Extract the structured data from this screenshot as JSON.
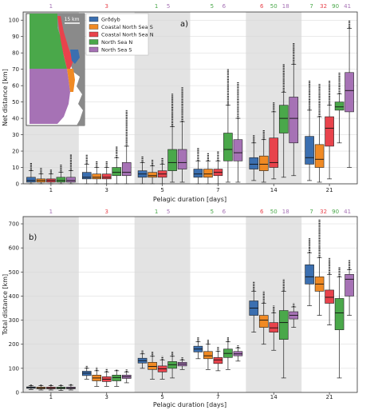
{
  "colors": {
    "Grðdyb": "#3b6fb0",
    "Coastal North Sea S": "#f08a24",
    "Coastal North Sea N": "#e8434c",
    "North Sea N": "#4aa84a",
    "North Sea S": "#a672b5",
    "shade": "#e3e3e3"
  },
  "chart_data": [
    {
      "type": "box",
      "panel_label": "a)",
      "title": "",
      "xlabel": "Pelagic duration [days]",
      "ylabel": "Net distance [km]",
      "ylim": [
        0,
        105
      ],
      "yticks": [
        0,
        10,
        20,
        30,
        40,
        50,
        60,
        70,
        80,
        90,
        100
      ],
      "categories": [
        "1",
        "3",
        "5",
        "7",
        "14",
        "21"
      ],
      "shaded_groups": [
        "1",
        "5",
        "14"
      ],
      "legend": {
        "placement": "top-left",
        "entries": [
          "Grðdyb",
          "Coastal North Sea S",
          "Coastal North Sea N",
          "North Sea N",
          "North Sea S"
        ]
      },
      "inset_map": {
        "scale_label": "15 km"
      },
      "top_counts": [
        {
          "category": "1",
          "values": [
            {
              "text": "1",
              "series": "North Sea S"
            }
          ]
        },
        {
          "category": "3",
          "values": [
            {
              "text": "3",
              "series": "Coastal North Sea N"
            }
          ]
        },
        {
          "category": "5",
          "values": [
            {
              "text": "1",
              "series": "North Sea N"
            },
            {
              "text": "5",
              "series": "North Sea S"
            }
          ]
        },
        {
          "category": "7",
          "values": [
            {
              "text": "5",
              "series": "North Sea N"
            },
            {
              "text": "6",
              "series": "North Sea S"
            }
          ]
        },
        {
          "category": "14",
          "values": [
            {
              "text": "6",
              "series": "Coastal North Sea N"
            },
            {
              "text": "50",
              "series": "North Sea N"
            },
            {
              "text": "18",
              "series": "North Sea S"
            }
          ]
        },
        {
          "category": "21",
          "values": [
            {
              "text": "7",
              "series": "North Sea N"
            },
            {
              "text": "32",
              "series": "Coastal North Sea N"
            },
            {
              "text": "90",
              "series": "North Sea N"
            },
            {
              "text": "41",
              "series": "North Sea S"
            }
          ]
        }
      ],
      "series": [
        {
          "name": "Grðdyb",
          "boxes": [
            {
              "wlo": 0,
              "q1": 1,
              "med": 2,
              "q3": 4,
              "whi": 8,
              "fout": 13
            },
            {
              "wlo": 0,
              "q1": 3,
              "med": 4,
              "q3": 7,
              "whi": 12,
              "fout": 18
            },
            {
              "wlo": 0,
              "q1": 4,
              "med": 6,
              "q3": 8,
              "whi": 13,
              "fout": 17
            },
            {
              "wlo": 0,
              "q1": 4,
              "med": 6,
              "q3": 9,
              "whi": 14,
              "fout": 22
            },
            {
              "wlo": 2,
              "q1": 9,
              "med": 12,
              "q3": 16,
              "whi": 25,
              "fout": 30
            },
            {
              "wlo": 2,
              "q1": 12,
              "med": 16,
              "q3": 29,
              "whi": 45,
              "fout": 63
            }
          ]
        },
        {
          "name": "Coastal North Sea S",
          "boxes": [
            {
              "wlo": 0,
              "q1": 1,
              "med": 2,
              "q3": 3,
              "whi": 6,
              "fout": 10
            },
            {
              "wlo": 0,
              "q1": 3,
              "med": 4,
              "q3": 6,
              "whi": 10,
              "fout": 14
            },
            {
              "wlo": 0,
              "q1": 4,
              "med": 5,
              "q3": 7,
              "whi": 11,
              "fout": 15
            },
            {
              "wlo": 0,
              "q1": 4,
              "med": 6,
              "q3": 9,
              "whi": 14,
              "fout": 19
            },
            {
              "wlo": 1,
              "q1": 8,
              "med": 12,
              "q3": 17,
              "whi": 27,
              "fout": 33
            },
            {
              "wlo": 1,
              "q1": 10,
              "med": 15,
              "q3": 24,
              "whi": 41,
              "fout": 61
            }
          ]
        },
        {
          "name": "Coastal North Sea N",
          "boxes": [
            {
              "wlo": 0,
              "q1": 1,
              "med": 2,
              "q3": 3,
              "whi": 6,
              "fout": 9
            },
            {
              "wlo": 0,
              "q1": 3,
              "med": 4,
              "q3": 6,
              "whi": 10,
              "fout": 14
            },
            {
              "wlo": 0,
              "q1": 4,
              "med": 6,
              "q3": 8,
              "whi": 12,
              "fout": 16
            },
            {
              "wlo": 0,
              "q1": 5,
              "med": 7,
              "q3": 9,
              "whi": 14,
              "fout": 20
            },
            {
              "wlo": 3,
              "q1": 10,
              "med": 13,
              "q3": 28,
              "whi": 44,
              "fout": 50
            },
            {
              "wlo": 3,
              "q1": 23,
              "med": 34,
              "q3": 41,
              "whi": 48,
              "fout": 63
            }
          ]
        },
        {
          "name": "North Sea N",
          "boxes": [
            {
              "wlo": 0,
              "q1": 1,
              "med": 2,
              "q3": 4,
              "whi": 7,
              "fout": 12
            },
            {
              "wlo": 0,
              "q1": 5,
              "med": 7,
              "q3": 10,
              "whi": 16,
              "fout": 23
            },
            {
              "wlo": 1,
              "q1": 8,
              "med": 13,
              "q3": 21,
              "whi": 35,
              "fout": 55
            },
            {
              "wlo": 1,
              "q1": 14,
              "med": 21,
              "q3": 31,
              "whi": 48,
              "fout": 70
            },
            {
              "wlo": 4,
              "q1": 31,
              "med": 40,
              "q3": 48,
              "whi": 56,
              "fout": 73
            },
            {
              "wlo": 25,
              "q1": 45,
              "med": 47,
              "q3": 50,
              "whi": 55,
              "fout": 68
            }
          ]
        },
        {
          "name": "North Sea S",
          "boxes": [
            {
              "wlo": 0,
              "q1": 1,
              "med": 2,
              "q3": 4,
              "whi": 8,
              "fout": 18
            },
            {
              "wlo": 0,
              "q1": 5,
              "med": 7,
              "q3": 13,
              "whi": 23,
              "fout": 45
            },
            {
              "wlo": 1,
              "q1": 9,
              "med": 13,
              "q3": 21,
              "whi": 38,
              "fout": 59
            },
            {
              "wlo": 1,
              "q1": 14,
              "med": 19,
              "q3": 27,
              "whi": 40,
              "fout": 62
            },
            {
              "wlo": 5,
              "q1": 25,
              "med": 40,
              "q3": 53,
              "whi": 73,
              "fout": 86
            },
            {
              "wlo": 10,
              "q1": 44,
              "med": 57,
              "q3": 68,
              "whi": 95,
              "fout": 100
            }
          ]
        }
      ]
    },
    {
      "type": "box",
      "panel_label": "b)",
      "title": "",
      "xlabel": "Pelagic duration [days]",
      "ylabel": "Total distance [km]",
      "ylim": [
        0,
        730
      ],
      "yticks": [
        0,
        100,
        200,
        300,
        400,
        500,
        600,
        700
      ],
      "categories": [
        "1",
        "3",
        "5",
        "7",
        "14",
        "21"
      ],
      "shaded_groups": [
        "1",
        "5",
        "14"
      ],
      "top_counts": [
        {
          "category": "1",
          "values": [
            {
              "text": "1",
              "series": "North Sea S"
            }
          ]
        },
        {
          "category": "3",
          "values": [
            {
              "text": "3",
              "series": "Coastal North Sea N"
            }
          ]
        },
        {
          "category": "5",
          "values": [
            {
              "text": "1",
              "series": "North Sea N"
            },
            {
              "text": "5",
              "series": "North Sea S"
            }
          ]
        },
        {
          "category": "7",
          "values": [
            {
              "text": "5",
              "series": "North Sea N"
            },
            {
              "text": "6",
              "series": "North Sea S"
            }
          ]
        },
        {
          "category": "14",
          "values": [
            {
              "text": "6",
              "series": "Coastal North Sea N"
            },
            {
              "text": "50",
              "series": "North Sea N"
            },
            {
              "text": "18",
              "series": "North Sea S"
            }
          ]
        },
        {
          "category": "21",
          "values": [
            {
              "text": "7",
              "series": "North Sea N"
            },
            {
              "text": "32",
              "series": "Coastal North Sea N"
            },
            {
              "text": "90",
              "series": "North Sea N"
            },
            {
              "text": "41",
              "series": "North Sea S"
            }
          ]
        }
      ],
      "series": [
        {
          "name": "Grðdyb",
          "boxes": [
            {
              "wlo": 12,
              "q1": 17,
              "med": 20,
              "q3": 23,
              "whi": 28,
              "fout": 35
            },
            {
              "wlo": 55,
              "q1": 70,
              "med": 80,
              "q3": 88,
              "whi": 100,
              "fout": 110
            },
            {
              "wlo": 100,
              "q1": 122,
              "med": 132,
              "q3": 142,
              "whi": 160,
              "fout": 175
            },
            {
              "wlo": 140,
              "q1": 168,
              "med": 180,
              "q3": 192,
              "whi": 210,
              "fout": 230
            },
            {
              "wlo": 250,
              "q1": 320,
              "med": 350,
              "q3": 380,
              "whi": 420,
              "fout": 460
            },
            {
              "wlo": 360,
              "q1": 450,
              "med": 480,
              "q3": 530,
              "whi": 580,
              "fout": 640
            }
          ]
        },
        {
          "name": "Coastal North Sea S",
          "boxes": [
            {
              "wlo": 10,
              "q1": 15,
              "med": 18,
              "q3": 22,
              "whi": 28,
              "fout": 35
            },
            {
              "wlo": 25,
              "q1": 48,
              "med": 60,
              "q3": 72,
              "whi": 90,
              "fout": 105
            },
            {
              "wlo": 55,
              "q1": 95,
              "med": 108,
              "q3": 125,
              "whi": 150,
              "fout": 170
            },
            {
              "wlo": 95,
              "q1": 140,
              "med": 152,
              "q3": 170,
              "whi": 200,
              "fout": 220
            },
            {
              "wlo": 200,
              "q1": 270,
              "med": 300,
              "q3": 320,
              "whi": 370,
              "fout": 420
            },
            {
              "wlo": 320,
              "q1": 420,
              "med": 450,
              "q3": 480,
              "whi": 560,
              "fout": 720
            }
          ]
        },
        {
          "name": "Coastal North Sea N",
          "boxes": [
            {
              "wlo": 10,
              "q1": 15,
              "med": 18,
              "q3": 22,
              "whi": 28,
              "fout": 33
            },
            {
              "wlo": 25,
              "q1": 45,
              "med": 55,
              "q3": 65,
              "whi": 85,
              "fout": 100
            },
            {
              "wlo": 55,
              "q1": 85,
              "med": 98,
              "q3": 110,
              "whi": 135,
              "fout": 150
            },
            {
              "wlo": 90,
              "q1": 120,
              "med": 135,
              "q3": 145,
              "whi": 170,
              "fout": 190
            },
            {
              "wlo": 175,
              "q1": 250,
              "med": 268,
              "q3": 290,
              "whi": 330,
              "fout": 360
            },
            {
              "wlo": 280,
              "q1": 370,
              "med": 395,
              "q3": 425,
              "whi": 490,
              "fout": 560
            }
          ]
        },
        {
          "name": "North Sea N",
          "boxes": [
            {
              "wlo": 8,
              "q1": 15,
              "med": 18,
              "q3": 22,
              "whi": 28,
              "fout": 32
            },
            {
              "wlo": 25,
              "q1": 48,
              "med": 62,
              "q3": 72,
              "whi": 90,
              "fout": 95
            },
            {
              "wlo": 60,
              "q1": 100,
              "med": 115,
              "q3": 128,
              "whi": 150,
              "fout": 170
            },
            {
              "wlo": 95,
              "q1": 145,
              "med": 162,
              "q3": 180,
              "whi": 210,
              "fout": 230
            },
            {
              "wlo": 60,
              "q1": 220,
              "med": 290,
              "q3": 340,
              "whi": 420,
              "fout": 470
            },
            {
              "wlo": 60,
              "q1": 260,
              "med": 330,
              "q3": 390,
              "whi": 480,
              "fout": 520
            }
          ]
        },
        {
          "name": "North Sea S",
          "boxes": [
            {
              "wlo": 10,
              "q1": 15,
              "med": 18,
              "q3": 22,
              "whi": 30,
              "fout": 35
            },
            {
              "wlo": 40,
              "q1": 58,
              "med": 65,
              "q3": 72,
              "whi": 85,
              "fout": 95
            },
            {
              "wlo": 95,
              "q1": 110,
              "med": 118,
              "q3": 125,
              "whi": 135,
              "fout": 145
            },
            {
              "wlo": 130,
              "q1": 152,
              "med": 160,
              "q3": 170,
              "whi": 185,
              "fout": 195
            },
            {
              "wlo": 270,
              "q1": 305,
              "med": 320,
              "q3": 335,
              "whi": 355,
              "fout": 370
            },
            {
              "wlo": 320,
              "q1": 400,
              "med": 470,
              "q3": 490,
              "whi": 510,
              "fout": 550
            }
          ]
        }
      ]
    }
  ]
}
